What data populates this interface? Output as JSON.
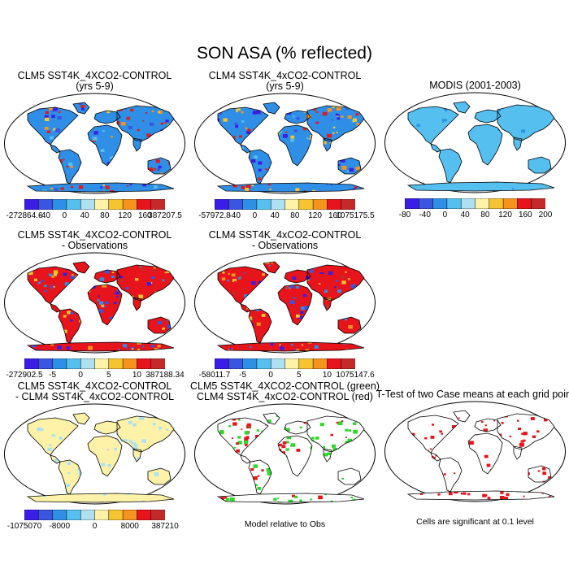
{
  "title": "SON ASA (% reflected)",
  "colors": {
    "palette": [
      "#3a1ee6",
      "#3b55e0",
      "#2f8fe6",
      "#55bff0",
      "#aee0f2",
      "#fdf2a8",
      "#f5c430",
      "#f5931e",
      "#e8141b",
      "#c42a2a"
    ],
    "ocean": "#ffffff",
    "land_outline": "#000000",
    "green_sig": "#2bd82b",
    "red_sig": "#e8141b"
  },
  "chart_data": [
    {
      "type": "heatmap",
      "title_lines": [
        "CLM5 SST4K_4XCO2-CONTROL",
        "(yrs 5-9)"
      ],
      "colorbar_labels": [
        "-272864.6",
        "-40",
        "0",
        "40",
        "80",
        "120",
        "160",
        "387207.5"
      ]
    },
    {
      "type": "heatmap",
      "title_lines": [
        "CLM4 SST4K_4xCO2-CONTROL",
        "(yrs 5-9)"
      ],
      "colorbar_labels": [
        "-57972.8",
        "-40",
        "0",
        "40",
        "80",
        "120",
        "160",
        "1075175.5"
      ]
    },
    {
      "type": "heatmap",
      "title_lines": [
        "MODIS (2001-2003)"
      ],
      "colorbar_labels": [
        "-80",
        "-40",
        "0",
        "40",
        "80",
        "120",
        "160",
        "200"
      ]
    },
    {
      "type": "heatmap",
      "title_lines": [
        "CLM5 SST4K_4XCO2-CONTROL",
        "- Observations"
      ],
      "colorbar_labels": [
        "-272902.5",
        "-5",
        "0",
        "5",
        "10",
        "387188.34"
      ]
    },
    {
      "type": "heatmap",
      "title_lines": [
        "CLM4 SST4K_4xCO2-CONTROL",
        "- Observations"
      ],
      "colorbar_labels": [
        "-58011.7",
        "-5",
        "0",
        "5",
        "10",
        "1075147.6"
      ]
    },
    {
      "type": "heatmap",
      "title_lines": [
        "CLM5 SST4K_4XCO2-CONTROL",
        "- CLM4 SST4K_4xCO2-CONTROL"
      ],
      "colorbar_labels": [
        "-1075070",
        "-8000",
        "0",
        "8000",
        "387210"
      ]
    },
    {
      "type": "heatmap",
      "title_lines": [
        "CLM5 SST4K_4XCO2-CONTROL (green)",
        "CLM4 SST4K_4xCO2-CONTROL (red)"
      ],
      "note": "Model relative to Obs"
    },
    {
      "type": "heatmap",
      "title_lines": [
        "T-Test of two Case means at each grid point"
      ],
      "note": "Cells are significant at 0.1 level"
    }
  ]
}
